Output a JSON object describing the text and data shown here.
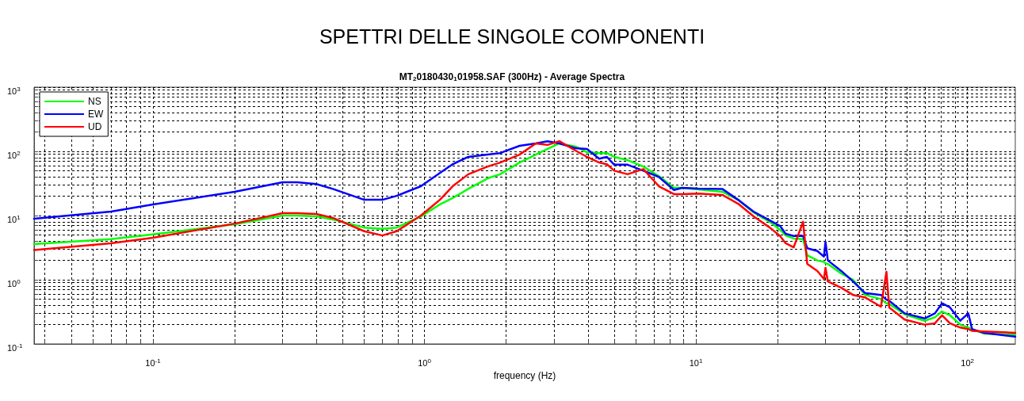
{
  "chart_data": {
    "type": "line",
    "title": "SPETTRI DELLE SINGOLE COMPONENTI",
    "subtitle": "MT$_{2}$0180430$_{1}$01958.SAF (300Hz) - Average Spectra",
    "xlabel": "frequency (Hz)",
    "log": "xy",
    "grid": true,
    "legend": "top left",
    "marker": "none",
    "line_style": "solid",
    "xlim": [
      0.0365,
      150
    ],
    "ylim": [
      0.1,
      1000
    ],
    "xticks": [
      {
        "value": 0.04,
        "label": null
      },
      {
        "value": 0.05,
        "label": null
      },
      {
        "value": 0.06,
        "label": null
      },
      {
        "value": 0.07,
        "label": null
      },
      {
        "value": 0.08,
        "label": null
      },
      {
        "value": 0.09,
        "label": null
      },
      {
        "value": 0.1,
        "label": "10$^{-1}$"
      },
      {
        "value": 0.2,
        "label": null
      },
      {
        "value": 0.3,
        "label": null
      },
      {
        "value": 0.4,
        "label": null
      },
      {
        "value": 0.5,
        "label": null
      },
      {
        "value": 0.6,
        "label": null
      },
      {
        "value": 0.7,
        "label": null
      },
      {
        "value": 0.8,
        "label": null
      },
      {
        "value": 0.9,
        "label": null
      },
      {
        "value": 1,
        "label": "10$^{0}$"
      },
      {
        "value": 2,
        "label": null
      },
      {
        "value": 3,
        "label": null
      },
      {
        "value": 4,
        "label": null
      },
      {
        "value": 5,
        "label": null
      },
      {
        "value": 6,
        "label": null
      },
      {
        "value": 7,
        "label": null
      },
      {
        "value": 8,
        "label": null
      },
      {
        "value": 9,
        "label": null
      },
      {
        "value": 10,
        "label": "10$^{1}$"
      },
      {
        "value": 20,
        "label": null
      },
      {
        "value": 30,
        "label": null
      },
      {
        "value": 40,
        "label": null
      },
      {
        "value": 50,
        "label": null
      },
      {
        "value": 60,
        "label": null
      },
      {
        "value": 70,
        "label": null
      },
      {
        "value": 80,
        "label": null
      },
      {
        "value": 90,
        "label": null
      },
      {
        "value": 100,
        "label": "10$^{2}$"
      }
    ],
    "yticks": [
      {
        "value": 0.1,
        "label": "10$^{-1}$"
      },
      {
        "value": 0.2,
        "label": null
      },
      {
        "value": 0.3,
        "label": null
      },
      {
        "value": 0.4,
        "label": null
      },
      {
        "value": 0.5,
        "label": null
      },
      {
        "value": 0.6,
        "label": null
      },
      {
        "value": 0.7,
        "label": null
      },
      {
        "value": 0.8,
        "label": null
      },
      {
        "value": 0.9,
        "label": null
      },
      {
        "value": 1,
        "label": "10$^{0}$"
      },
      {
        "value": 2,
        "label": null
      },
      {
        "value": 3,
        "label": null
      },
      {
        "value": 4,
        "label": null
      },
      {
        "value": 5,
        "label": null
      },
      {
        "value": 6,
        "label": null
      },
      {
        "value": 7,
        "label": null
      },
      {
        "value": 8,
        "label": null
      },
      {
        "value": 9,
        "label": null
      },
      {
        "value": 10,
        "label": "10$^{1}$"
      },
      {
        "value": 20,
        "label": null
      },
      {
        "value": 30,
        "label": null
      },
      {
        "value": 40,
        "label": null
      },
      {
        "value": 50,
        "label": null
      },
      {
        "value": 60,
        "label": null
      },
      {
        "value": 70,
        "label": null
      },
      {
        "value": 80,
        "label": null
      },
      {
        "value": 90,
        "label": null
      },
      {
        "value": 100,
        "label": "10$^{2}$"
      },
      {
        "value": 200,
        "label": null
      },
      {
        "value": 300,
        "label": null
      },
      {
        "value": 400,
        "label": null
      },
      {
        "value": 500,
        "label": null
      },
      {
        "value": 600,
        "label": null
      },
      {
        "value": 700,
        "label": null
      },
      {
        "value": 800,
        "label": null
      },
      {
        "value": 900,
        "label": null
      },
      {
        "value": 1000,
        "label": "10$^{3}$"
      }
    ],
    "x": [
      0.0365,
      0.07,
      0.1,
      0.2,
      0.3,
      0.34,
      0.4,
      0.46,
      0.6,
      0.7,
      0.79,
      0.97,
      1.14,
      1.27,
      1.45,
      1.71,
      1.9,
      2.24,
      2.57,
      2.84,
      3.14,
      3.6,
      3.97,
      4.4,
      4.7,
      5.0,
      5.6,
      6.4,
      7.3,
      8.3,
      8.9,
      10.2,
      12.5,
      14.3,
      16.3,
      18.7,
      20.4,
      21.4,
      22.9,
      24.8,
      25.7,
      28,
      29.6,
      30,
      30.6,
      34.3,
      37.9,
      42,
      48,
      50.3,
      51.5,
      58.7,
      69.5,
      75.9,
      80.6,
      86.2,
      94.1,
      100.7,
      104,
      115,
      150
    ],
    "series": [
      {
        "name": "NS",
        "color": "#00ff00",
        "values": [
          3.6,
          4.3,
          5.1,
          7.3,
          10,
          10,
          9.7,
          8.7,
          6.5,
          6.2,
          6.5,
          9.7,
          14.9,
          18.7,
          26,
          38,
          44,
          67,
          89,
          109,
          133,
          119,
          97,
          94,
          94,
          82,
          73,
          58,
          41,
          27,
          27,
          25.5,
          23.5,
          17.6,
          11.2,
          8,
          6,
          4.9,
          4.4,
          4.3,
          2.4,
          2.0,
          1.9,
          1.8,
          1.77,
          1.25,
          1.0,
          0.58,
          0.5,
          0.43,
          0.42,
          0.29,
          0.23,
          0.26,
          0.32,
          0.28,
          0.2,
          0.18,
          0.17,
          0.145,
          0.14
        ]
      },
      {
        "name": "EW",
        "color": "#0000ff",
        "values": [
          8.9,
          11.5,
          14.9,
          23.5,
          33,
          33,
          31,
          26,
          17.6,
          17.6,
          20.3,
          28.6,
          46,
          63,
          82,
          89,
          94,
          122,
          133,
          144,
          133,
          112,
          109,
          77,
          82,
          62,
          62,
          50,
          40,
          25,
          27,
          26.3,
          26,
          17.6,
          11.5,
          8.4,
          6.9,
          5.2,
          4.8,
          4.8,
          3.1,
          2.8,
          2.3,
          3.9,
          2.0,
          1.37,
          0.94,
          0.62,
          0.58,
          0.49,
          0.47,
          0.3,
          0.25,
          0.3,
          0.43,
          0.37,
          0.23,
          0.3,
          0.17,
          0.149,
          0.13
        ]
      },
      {
        "name": "UD",
        "color": "#ff0000",
        "values": [
          2.9,
          3.7,
          4.5,
          7.5,
          10.9,
          10.9,
          10.6,
          9.2,
          5.7,
          4.9,
          5.7,
          10,
          17.6,
          28.6,
          44,
          58,
          67,
          89,
          133,
          126,
          144,
          103,
          82,
          67,
          63,
          50,
          44,
          53,
          28.6,
          21.6,
          21.6,
          22,
          21,
          15.3,
          9.7,
          6.5,
          4.8,
          3.7,
          3.2,
          8,
          1.77,
          1.37,
          1.03,
          1.53,
          0.94,
          0.75,
          0.58,
          0.53,
          0.38,
          1.33,
          0.37,
          0.24,
          0.2,
          0.21,
          0.28,
          0.21,
          0.18,
          0.17,
          0.16,
          0.157,
          0.149
        ]
      }
    ]
  }
}
